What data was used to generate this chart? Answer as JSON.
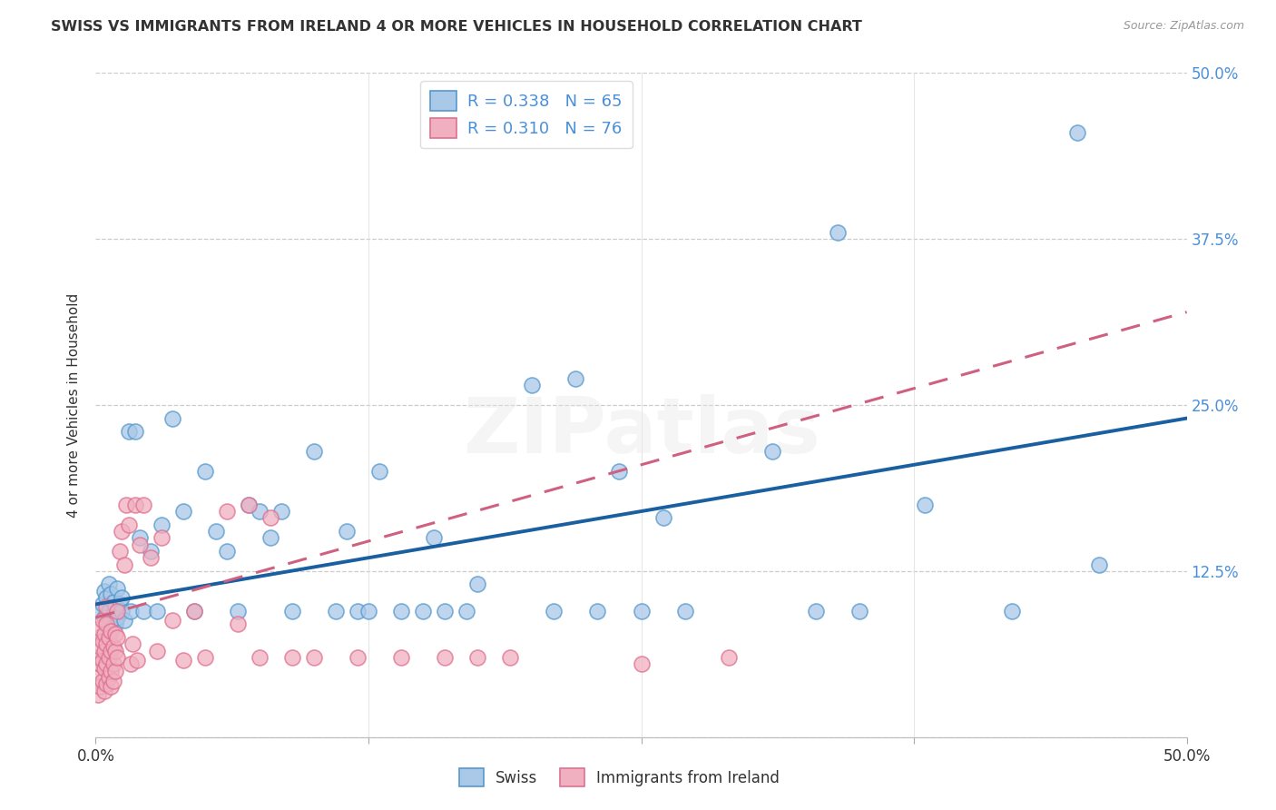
{
  "title": "SWISS VS IMMIGRANTS FROM IRELAND 4 OR MORE VEHICLES IN HOUSEHOLD CORRELATION CHART",
  "source": "Source: ZipAtlas.com",
  "ylabel": "4 or more Vehicles in Household",
  "xmin": 0.0,
  "xmax": 0.5,
  "ymin": 0.0,
  "ymax": 0.5,
  "xtick_positions": [
    0.0,
    0.125,
    0.25,
    0.375,
    0.5
  ],
  "xtick_labels": [
    "0.0%",
    "",
    "",
    "",
    "50.0%"
  ],
  "ytick_positions": [
    0.0,
    0.125,
    0.25,
    0.375,
    0.5
  ],
  "ytick_labels": [
    "",
    "12.5%",
    "25.0%",
    "37.5%",
    "50.0%"
  ],
  "grid_color": "#cccccc",
  "bg_color": "#ffffff",
  "swiss_face_color": "#aac8e8",
  "swiss_edge_color": "#5599cc",
  "ireland_face_color": "#f0b0c0",
  "ireland_edge_color": "#e07090",
  "swiss_line_color": "#1a5fa0",
  "ireland_line_color": "#d06080",
  "swiss_R": 0.338,
  "swiss_N": 65,
  "ireland_R": 0.31,
  "ireland_N": 76,
  "legend_top": [
    "R = 0.338   N = 65",
    "R = 0.310   N = 76"
  ],
  "legend_bottom": [
    "Swiss",
    "Immigrants from Ireland"
  ],
  "watermark": "ZIPatlas",
  "text_color": "#333333",
  "axis_color": "#4a90d9",
  "swiss_line_x0": 0.0,
  "swiss_line_y0": 0.1,
  "swiss_line_x1": 0.5,
  "swiss_line_y1": 0.24,
  "ireland_line_x0": 0.0,
  "ireland_line_y0": 0.09,
  "ireland_line_x1": 0.5,
  "ireland_line_y1": 0.32
}
